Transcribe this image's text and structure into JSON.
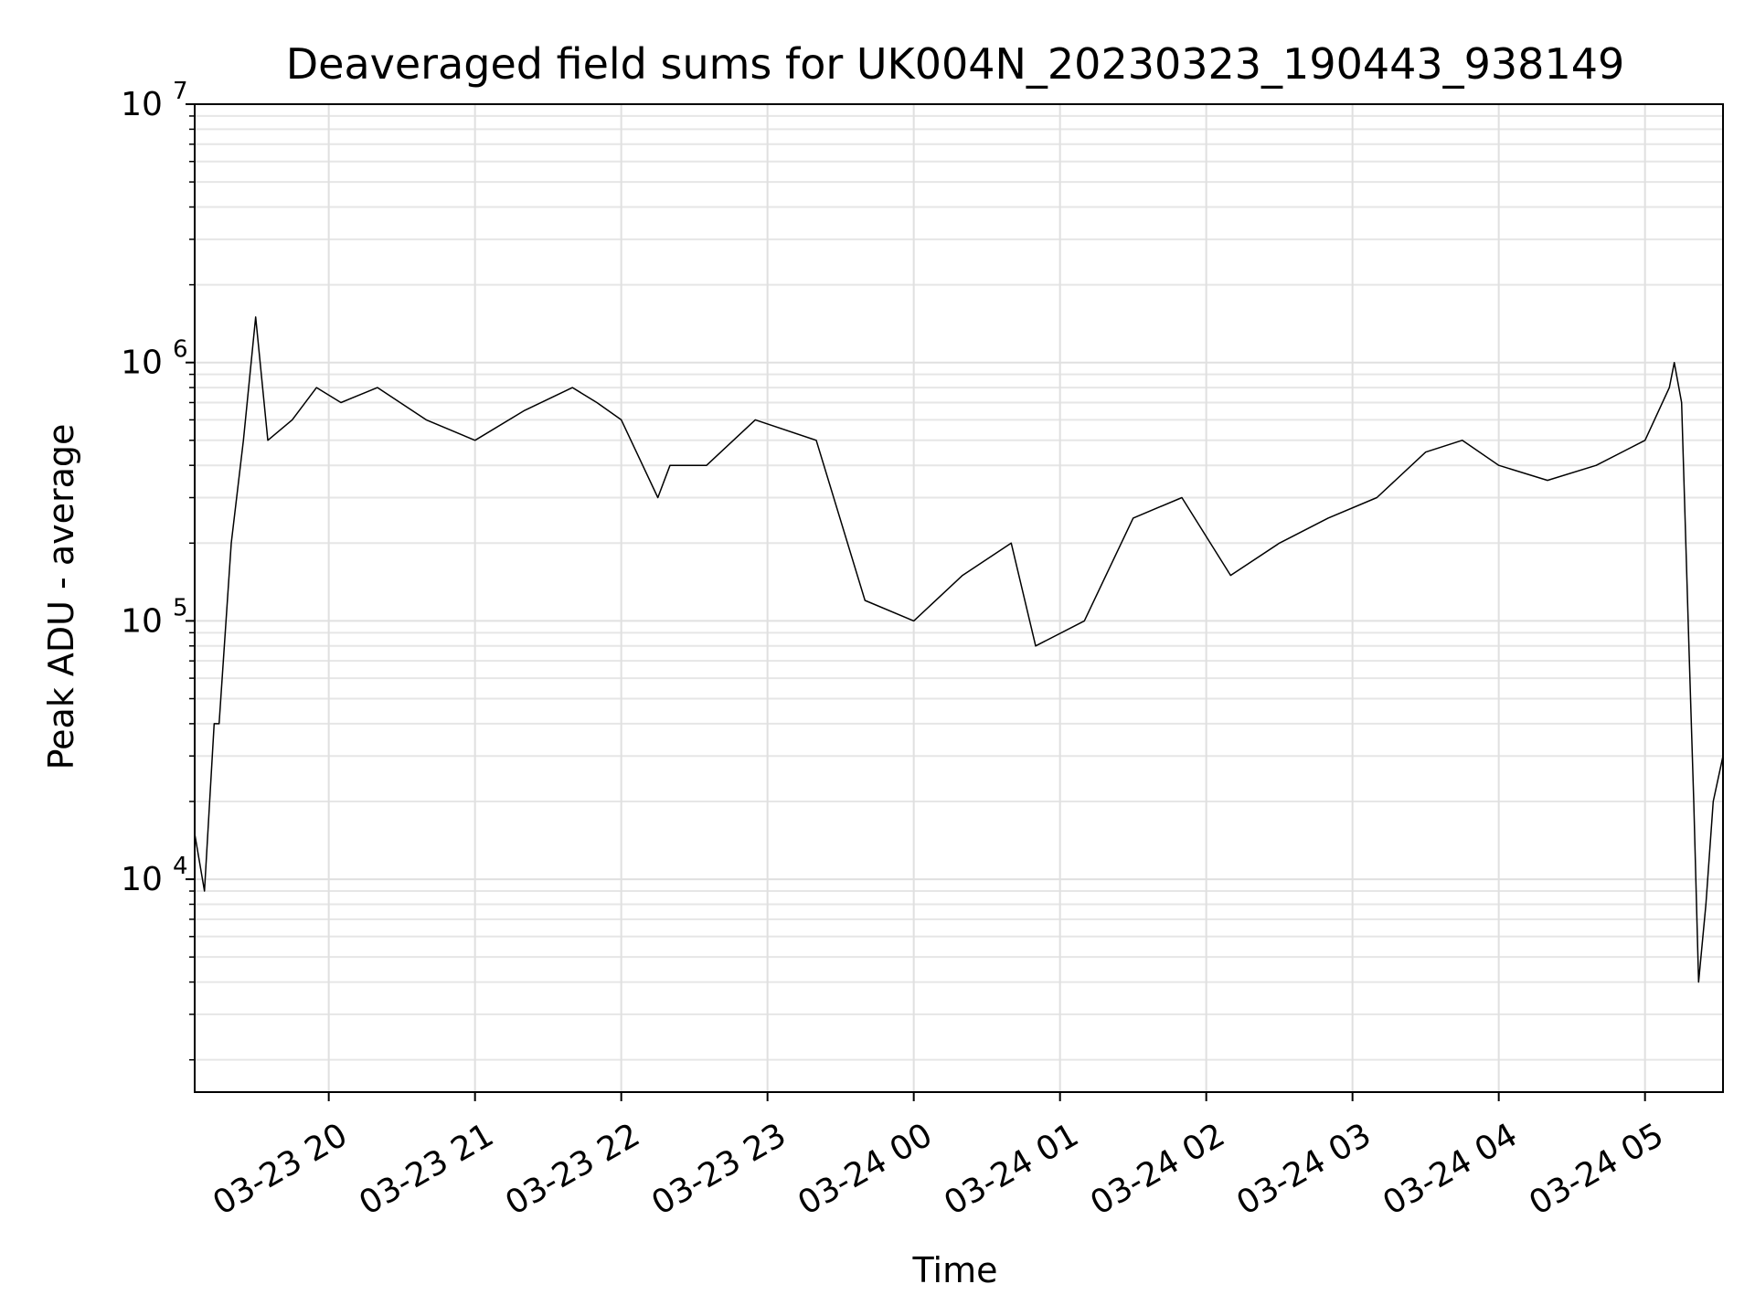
{
  "chart_data": {
    "type": "line",
    "title": "Deaveraged field sums for UK004N_20230323_190443_938149",
    "xlabel": "Time",
    "ylabel": "Peak ADU - average",
    "yscale": "log",
    "ylim": [
      1500,
      10000000
    ],
    "xlim": [
      "2023-03-23 19:05",
      "2023-03-24 05:32"
    ],
    "grid": true,
    "x_ticks": [
      "2023-03-23 20:00",
      "2023-03-23 21:00",
      "2023-03-23 22:00",
      "2023-03-23 23:00",
      "2023-03-24 00:00",
      "2023-03-24 01:00",
      "2023-03-24 02:00",
      "2023-03-24 03:00",
      "2023-03-24 04:00",
      "2023-03-24 05:00"
    ],
    "x_tick_labels": [
      "03-23 20",
      "03-23 21",
      "03-23 22",
      "03-23 23",
      "03-24 00",
      "03-24 01",
      "03-24 02",
      "03-24 03",
      "03-24 04",
      "03-24 05"
    ],
    "y_ticks": [
      10000,
      100000,
      1000000,
      10000000
    ],
    "y_tick_labels": [
      {
        "base": "10",
        "exp": "4"
      },
      {
        "base": "10",
        "exp": "5"
      },
      {
        "base": "10",
        "exp": "6"
      },
      {
        "base": "10",
        "exp": "7"
      }
    ],
    "series": [
      {
        "color": "#000000",
        "x": [
          "2023-03-23 19:05",
          "2023-03-23 19:09",
          "2023-03-23 19:13",
          "2023-03-23 19:15",
          "2023-03-23 19:20",
          "2023-03-23 19:25",
          "2023-03-23 19:30",
          "2023-03-23 19:35",
          "2023-03-23 19:45",
          "2023-03-23 19:55",
          "2023-03-23 20:05",
          "2023-03-23 20:20",
          "2023-03-23 20:40",
          "2023-03-23 21:00",
          "2023-03-23 21:20",
          "2023-03-23 21:40",
          "2023-03-23 21:50",
          "2023-03-23 22:00",
          "2023-03-23 22:15",
          "2023-03-23 22:20",
          "2023-03-23 22:35",
          "2023-03-23 22:55",
          "2023-03-23 23:20",
          "2023-03-23 23:40",
          "2023-03-24 00:00",
          "2023-03-24 00:20",
          "2023-03-24 00:40",
          "2023-03-24 00:50",
          "2023-03-24 01:10",
          "2023-03-24 01:30",
          "2023-03-24 01:50",
          "2023-03-24 02:10",
          "2023-03-24 02:30",
          "2023-03-24 02:50",
          "2023-03-24 03:10",
          "2023-03-24 03:30",
          "2023-03-24 03:45",
          "2023-03-24 04:00",
          "2023-03-24 04:20",
          "2023-03-24 04:40",
          "2023-03-24 05:00",
          "2023-03-24 05:10",
          "2023-03-24 05:12",
          "2023-03-24 05:15",
          "2023-03-24 05:18",
          "2023-03-24 05:20",
          "2023-03-24 05:22",
          "2023-03-24 05:25",
          "2023-03-24 05:28",
          "2023-03-24 05:32"
        ],
        "y": [
          15000,
          9000,
          40000,
          40000,
          200000,
          500000,
          1500000,
          500000,
          600000,
          800000,
          700000,
          800000,
          600000,
          500000,
          650000,
          800000,
          700000,
          600000,
          300000,
          400000,
          400000,
          600000,
          500000,
          120000,
          100000,
          150000,
          200000,
          80000,
          100000,
          250000,
          300000,
          150000,
          200000,
          250000,
          300000,
          450000,
          500000,
          400000,
          350000,
          400000,
          500000,
          800000,
          1000000,
          700000,
          80000,
          20000,
          4000,
          8000,
          20000,
          30000
        ]
      }
    ]
  }
}
